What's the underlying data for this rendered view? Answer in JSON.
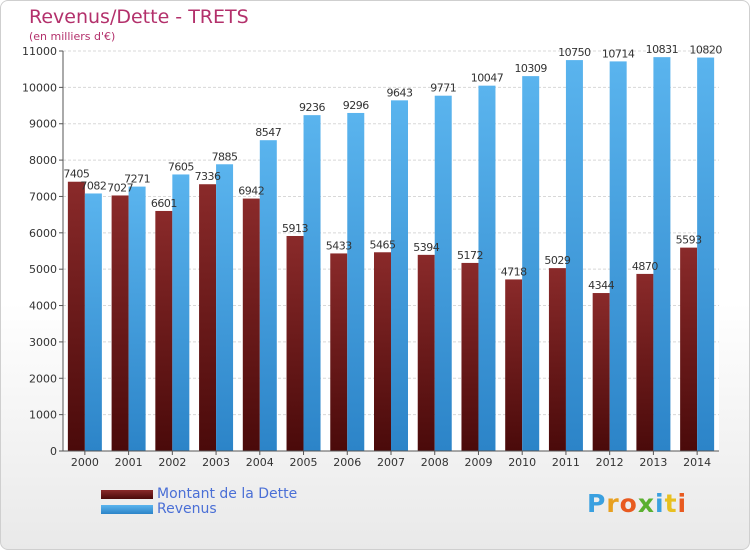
{
  "header": {
    "title": "Revenus/Dette - TRETS",
    "subtitle": "(en milliers d'€)"
  },
  "logo": {
    "text": "Proxiti",
    "letter_colors": [
      "#3aa0e0",
      "#e8a020",
      "#e85a20",
      "#5ab030",
      "#3aa0e0",
      "#e8c020",
      "#e85a20"
    ]
  },
  "chart_data": {
    "type": "bar",
    "title": "Revenus/Dette - TRETS",
    "subtitle": "(en milliers d'€)",
    "xlabel": "",
    "ylabel": "",
    "categories": [
      "2000",
      "2001",
      "2002",
      "2003",
      "2004",
      "2005",
      "2006",
      "2007",
      "2008",
      "2009",
      "2010",
      "2011",
      "2012",
      "2013",
      "2014"
    ],
    "series": [
      {
        "name": "Montant de la Dette",
        "color": "#7a1f1f",
        "values": [
          7405,
          7027,
          6601,
          7336,
          6942,
          5913,
          5433,
          5465,
          5394,
          5172,
          4718,
          5029,
          4344,
          4870,
          5593
        ],
        "labels": [
          "7405",
          "7027",
          "6601",
          "7336",
          "6942",
          "5913",
          "5433",
          "5465",
          "5394",
          "5172",
          "4718",
          "5029",
          "4344",
          "4870",
          "5593"
        ]
      },
      {
        "name": "Revenus",
        "color": "#3d9ee0",
        "values": [
          7082,
          7271,
          7605,
          7885,
          8547,
          9236,
          9296,
          9643,
          9771,
          10047,
          10309,
          10750,
          10714,
          10831,
          10820
        ],
        "labels": [
          "7082",
          "7271",
          "7605",
          "7885",
          "8547",
          "9236",
          "9296",
          "9643",
          "9771",
          "10047",
          "10309",
          "10750",
          "10714",
          "10831",
          "10820"
        ]
      }
    ],
    "ylim": [
      0,
      11000
    ],
    "yticks": [
      0,
      1000,
      2000,
      3000,
      4000,
      5000,
      6000,
      7000,
      8000,
      9000,
      10000,
      11000
    ],
    "grid": true,
    "legend_position": "bottom-left"
  }
}
